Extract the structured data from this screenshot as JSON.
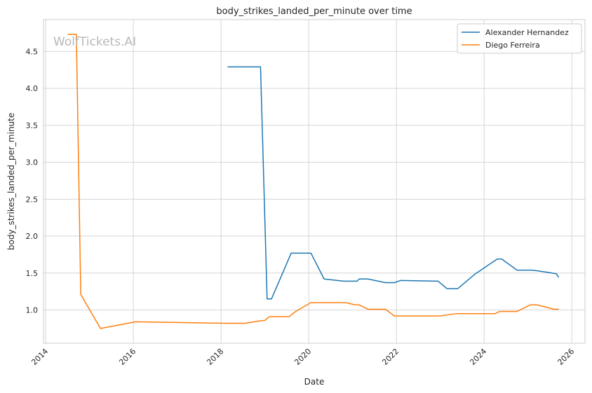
{
  "watermark": "WolfTickets.AI",
  "chart_data": {
    "type": "line",
    "title": "body_strikes_landed_per_minute over time",
    "xlabel": "Date",
    "ylabel": "body_strikes_landed_per_minute",
    "xlim": [
      2013.95,
      2026.3
    ],
    "ylim": [
      0.55,
      4.93
    ],
    "xticks": [
      2014,
      2016,
      2018,
      2020,
      2022,
      2024,
      2026
    ],
    "yticks": [
      1.0,
      1.5,
      2.0,
      2.5,
      3.0,
      3.5,
      4.0,
      4.5
    ],
    "ytick_labels": [
      "1.0",
      "1.5",
      "2.0",
      "2.5",
      "3.0",
      "3.5",
      "4.0",
      "4.5"
    ],
    "grid": true,
    "legend_position": "top-right",
    "series": [
      {
        "name": "Alexander Hernandez",
        "color": "#1f77b4",
        "points": [
          [
            2018.15,
            4.29
          ],
          [
            2018.9,
            4.29
          ],
          [
            2019.05,
            1.15
          ],
          [
            2019.15,
            1.15
          ],
          [
            2019.6,
            1.77
          ],
          [
            2020.05,
            1.77
          ],
          [
            2020.35,
            1.42
          ],
          [
            2020.8,
            1.39
          ],
          [
            2021.1,
            1.39
          ],
          [
            2021.15,
            1.42
          ],
          [
            2021.35,
            1.42
          ],
          [
            2021.75,
            1.37
          ],
          [
            2021.95,
            1.37
          ],
          [
            2022.1,
            1.4
          ],
          [
            2022.95,
            1.39
          ],
          [
            2023.15,
            1.29
          ],
          [
            2023.4,
            1.29
          ],
          [
            2023.8,
            1.49
          ],
          [
            2024.3,
            1.69
          ],
          [
            2024.4,
            1.69
          ],
          [
            2024.75,
            1.54
          ],
          [
            2025.1,
            1.54
          ],
          [
            2025.45,
            1.51
          ],
          [
            2025.65,
            1.49
          ],
          [
            2025.7,
            1.44
          ]
        ]
      },
      {
        "name": "Diego Ferreira",
        "color": "#ff7f0e",
        "points": [
          [
            2014.5,
            4.73
          ],
          [
            2014.7,
            4.73
          ],
          [
            2014.8,
            1.21
          ],
          [
            2015.25,
            0.75
          ],
          [
            2016.05,
            0.84
          ],
          [
            2018.1,
            0.82
          ],
          [
            2018.55,
            0.82
          ],
          [
            2018.85,
            0.85
          ],
          [
            2019.0,
            0.86
          ],
          [
            2019.1,
            0.91
          ],
          [
            2019.55,
            0.91
          ],
          [
            2019.7,
            0.98
          ],
          [
            2020.05,
            1.1
          ],
          [
            2020.85,
            1.1
          ],
          [
            2021.05,
            1.07
          ],
          [
            2021.15,
            1.07
          ],
          [
            2021.35,
            1.01
          ],
          [
            2021.75,
            1.01
          ],
          [
            2021.95,
            0.92
          ],
          [
            2023.0,
            0.92
          ],
          [
            2023.35,
            0.95
          ],
          [
            2024.25,
            0.95
          ],
          [
            2024.35,
            0.98
          ],
          [
            2024.75,
            0.98
          ],
          [
            2025.05,
            1.07
          ],
          [
            2025.2,
            1.07
          ],
          [
            2025.6,
            1.01
          ],
          [
            2025.7,
            1.01
          ]
        ]
      }
    ]
  }
}
